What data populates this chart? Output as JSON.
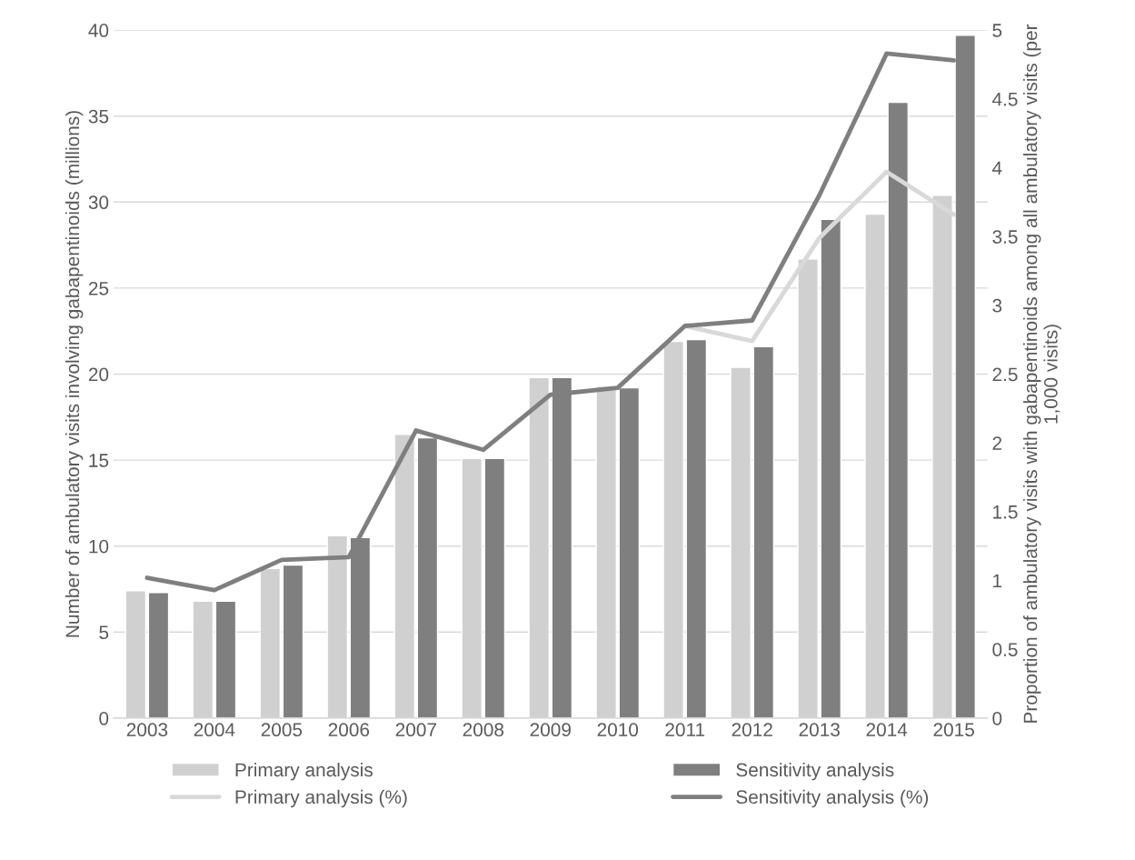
{
  "chart_data": {
    "type": "bar",
    "categories": [
      "2003",
      "2004",
      "2005",
      "2006",
      "2007",
      "2008",
      "2009",
      "2010",
      "2011",
      "2012",
      "2013",
      "2014",
      "2015"
    ],
    "ylabel": "Number of ambulatory visits involving gabapentinoids (millions)",
    "y2label": "Proportion of ambulatory visits with gabapentinoids among all ambulatory visits (per 1,000 visits)",
    "ylim": [
      0,
      40
    ],
    "yticks": [
      0,
      5,
      10,
      15,
      20,
      25,
      30,
      35,
      40
    ],
    "y2lim": [
      0,
      5
    ],
    "y2ticks": [
      0,
      {
        "value": 0.5,
        "label": "0.5"
      },
      1,
      {
        "value": 1.5,
        "label": "1.5"
      },
      2,
      {
        "value": 2.5,
        "label": "2.5"
      },
      3,
      {
        "value": 3.5,
        "label": "3.5"
      },
      4,
      {
        "value": 4.5,
        "label": "4.5"
      },
      5
    ],
    "grid": "y",
    "legend": "bottom",
    "series": [
      {
        "name": "Primary analysis",
        "color": "#d0d0d0",
        "values": [
          7.4,
          6.8,
          8.7,
          10.6,
          16.5,
          15.1,
          19.8,
          19.3,
          21.9,
          20.4,
          26.7,
          29.3,
          30.4
        ]
      },
      {
        "name": "Sensitivity analysis",
        "color": "#7f7f7f",
        "values": [
          7.3,
          6.8,
          8.9,
          10.5,
          16.3,
          15.1,
          19.8,
          19.2,
          22.0,
          21.6,
          29.0,
          35.8,
          39.7
        ]
      },
      {
        "name": "Primary analysis (%)",
        "type": "line",
        "axis": "y2",
        "color": "#d9d9d9",
        "values": [
          null,
          null,
          null,
          null,
          null,
          null,
          null,
          null,
          2.85,
          2.74,
          3.49,
          3.97,
          3.66
        ]
      },
      {
        "name": "Sensitivity analysis (%)",
        "type": "line",
        "axis": "y2",
        "color": "#7f7f7f",
        "values": [
          1.02,
          0.93,
          1.15,
          1.17,
          2.09,
          1.95,
          2.35,
          2.4,
          2.85,
          2.89,
          3.8,
          4.83,
          4.78
        ]
      }
    ]
  }
}
